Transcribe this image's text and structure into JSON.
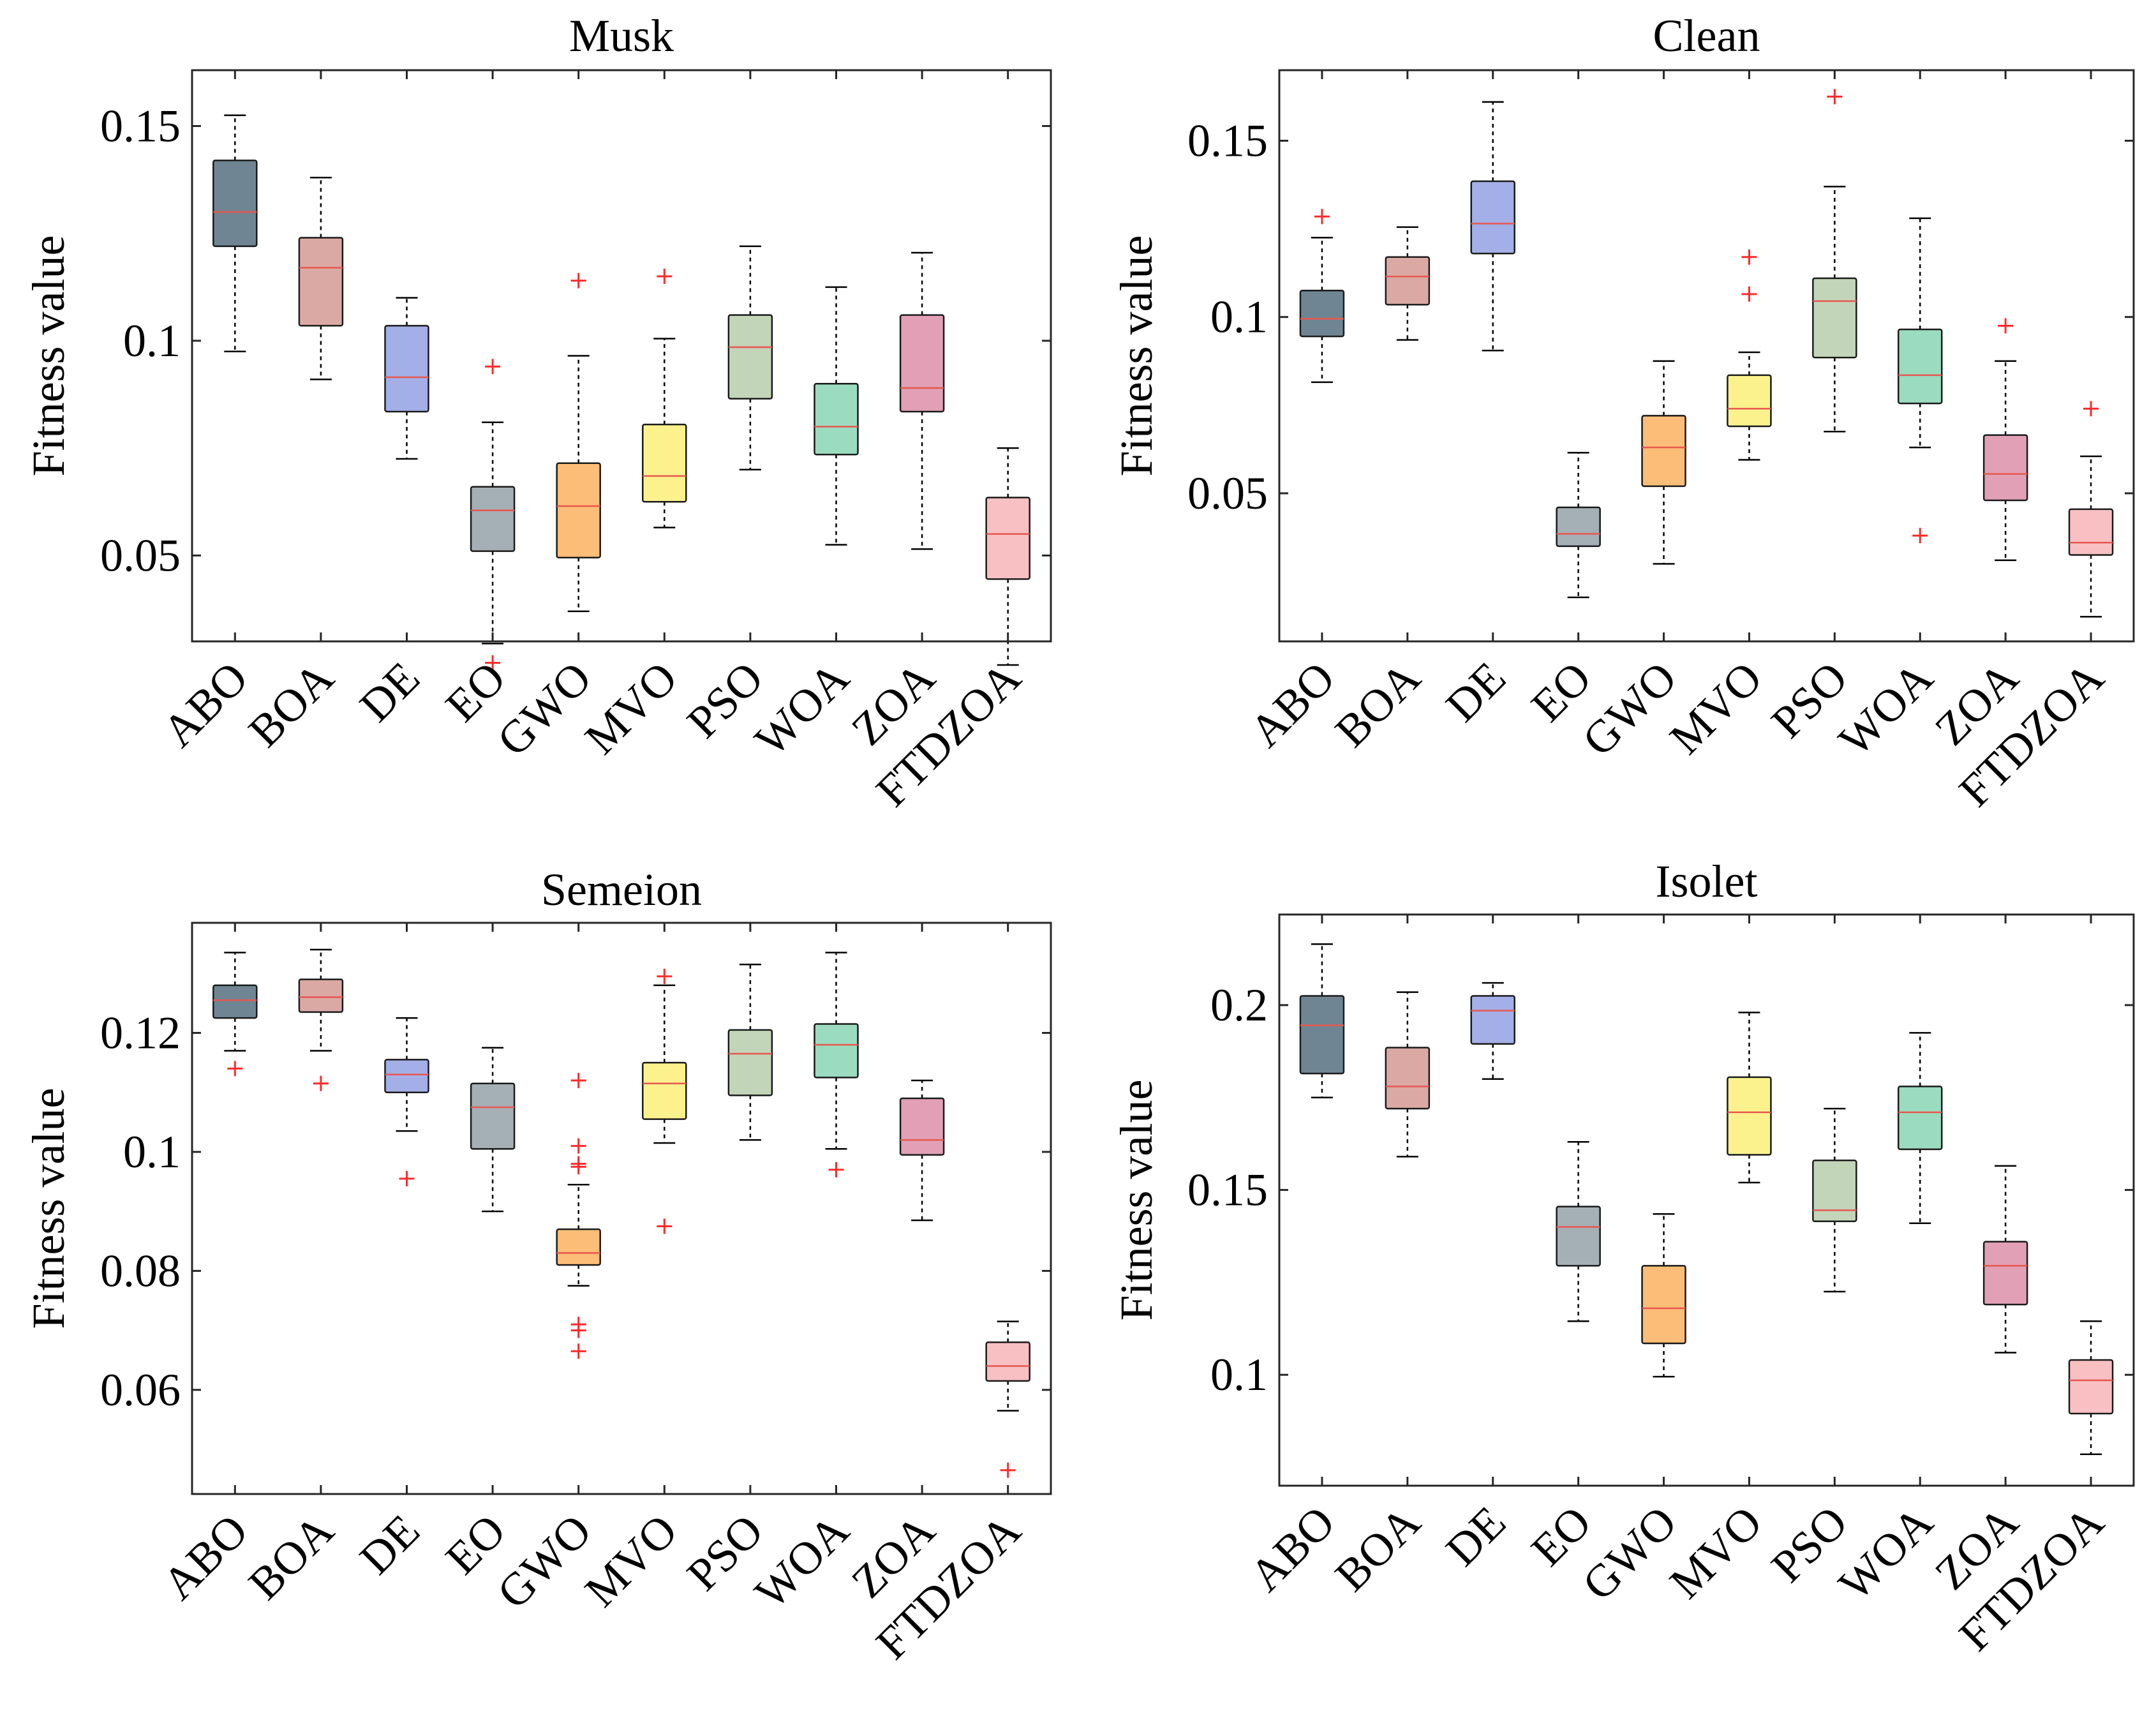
{
  "colors": {
    "ABO": "#6f8593",
    "BOA": "#dba9a3",
    "DE": "#a3afe6",
    "EO": "#a5afb6",
    "GWO": "#fbbd77",
    "MVO": "#fbf28d",
    "PSO": "#c3d5b9",
    "WOA": "#9bdbbf",
    "ZOA": "#e1a0b5",
    "FTDZOA": "#f8c0c3",
    "median": "#e8564f",
    "outlier": "#ff2a2a"
  },
  "chart_data": [
    {
      "type": "box",
      "title": "Musk",
      "ylabel": "Fitness value",
      "categories": [
        "ABO",
        "BOA",
        "DE",
        "EO",
        "GWO",
        "MVO",
        "PSO",
        "WOA",
        "ZOA",
        "FTDZOA"
      ],
      "ylim": [
        0.03,
        0.163
      ],
      "yticks": [
        0.05,
        0.1,
        0.15
      ],
      "ytick_labels": [
        "0.05",
        "0.1",
        "0.15"
      ],
      "boxes": [
        {
          "whisker_low": 0.0975,
          "q1": 0.122,
          "median": 0.13,
          "q3": 0.142,
          "whisker_high": 0.1525,
          "outliers": []
        },
        {
          "whisker_low": 0.091,
          "q1": 0.1035,
          "median": 0.117,
          "q3": 0.124,
          "whisker_high": 0.138,
          "outliers": []
        },
        {
          "whisker_low": 0.0725,
          "q1": 0.0835,
          "median": 0.0915,
          "q3": 0.1035,
          "whisker_high": 0.11,
          "outliers": []
        },
        {
          "whisker_low": 0.0295,
          "q1": 0.051,
          "median": 0.0605,
          "q3": 0.066,
          "whisker_high": 0.081,
          "outliers": [
            0.094,
            0.025
          ]
        },
        {
          "whisker_low": 0.037,
          "q1": 0.0495,
          "median": 0.0615,
          "q3": 0.0715,
          "whisker_high": 0.0965,
          "outliers": [
            0.114
          ]
        },
        {
          "whisker_low": 0.0565,
          "q1": 0.0625,
          "median": 0.0685,
          "q3": 0.0805,
          "whisker_high": 0.1005,
          "outliers": [
            0.115
          ]
        },
        {
          "whisker_low": 0.07,
          "q1": 0.0865,
          "median": 0.0985,
          "q3": 0.106,
          "whisker_high": 0.122,
          "outliers": []
        },
        {
          "whisker_low": 0.0525,
          "q1": 0.0735,
          "median": 0.08,
          "q3": 0.09,
          "whisker_high": 0.1125,
          "outliers": []
        },
        {
          "whisker_low": 0.0515,
          "q1": 0.0835,
          "median": 0.089,
          "q3": 0.106,
          "whisker_high": 0.1205,
          "outliers": []
        },
        {
          "whisker_low": 0.0245,
          "q1": 0.0445,
          "median": 0.055,
          "q3": 0.0635,
          "whisker_high": 0.075,
          "outliers": []
        }
      ]
    },
    {
      "type": "box",
      "title": "Clean",
      "ylabel": "Fitness value",
      "categories": [
        "ABO",
        "BOA",
        "DE",
        "EO",
        "GWO",
        "MVO",
        "PSO",
        "WOA",
        "ZOA",
        "FTDZOA"
      ],
      "ylim": [
        0.008,
        0.17
      ],
      "yticks": [
        0.05,
        0.1,
        0.15
      ],
      "ytick_labels": [
        "0.05",
        "0.1",
        "0.15"
      ],
      "boxes": [
        {
          "whisker_low": 0.0815,
          "q1": 0.0945,
          "median": 0.0995,
          "q3": 0.1075,
          "whisker_high": 0.1225,
          "outliers": [
            0.1285
          ]
        },
        {
          "whisker_low": 0.0935,
          "q1": 0.1035,
          "median": 0.1115,
          "q3": 0.117,
          "whisker_high": 0.1255,
          "outliers": []
        },
        {
          "whisker_low": 0.0905,
          "q1": 0.118,
          "median": 0.1265,
          "q3": 0.1385,
          "whisker_high": 0.161,
          "outliers": []
        },
        {
          "whisker_low": 0.0205,
          "q1": 0.035,
          "median": 0.0385,
          "q3": 0.046,
          "whisker_high": 0.0615,
          "outliers": []
        },
        {
          "whisker_low": 0.03,
          "q1": 0.052,
          "median": 0.063,
          "q3": 0.072,
          "whisker_high": 0.0875,
          "outliers": []
        },
        {
          "whisker_low": 0.0595,
          "q1": 0.069,
          "median": 0.074,
          "q3": 0.0835,
          "whisker_high": 0.09,
          "outliers": [
            0.117,
            0.1065
          ]
        },
        {
          "whisker_low": 0.0675,
          "q1": 0.0885,
          "median": 0.1045,
          "q3": 0.111,
          "whisker_high": 0.137,
          "outliers": [
            0.1625
          ]
        },
        {
          "whisker_low": 0.063,
          "q1": 0.0755,
          "median": 0.0835,
          "q3": 0.0965,
          "whisker_high": 0.128,
          "outliers": [
            0.038
          ]
        },
        {
          "whisker_low": 0.031,
          "q1": 0.048,
          "median": 0.0555,
          "q3": 0.0665,
          "whisker_high": 0.0875,
          "outliers": [
            0.0975
          ]
        },
        {
          "whisker_low": 0.015,
          "q1": 0.0325,
          "median": 0.036,
          "q3": 0.0455,
          "whisker_high": 0.0605,
          "outliers": [
            0.074
          ]
        }
      ]
    },
    {
      "type": "box",
      "title": "Semeion",
      "ylabel": "Fitness value",
      "categories": [
        "ABO",
        "BOA",
        "DE",
        "EO",
        "GWO",
        "MVO",
        "PSO",
        "WOA",
        "ZOA",
        "FTDZOA"
      ],
      "ylim": [
        0.0425,
        0.1385
      ],
      "yticks": [
        0.06,
        0.08,
        0.1,
        0.12
      ],
      "ytick_labels": [
        "0.06",
        "0.08",
        "0.1",
        "0.12"
      ],
      "boxes": [
        {
          "whisker_low": 0.117,
          "q1": 0.1225,
          "median": 0.1255,
          "q3": 0.128,
          "whisker_high": 0.1335,
          "outliers": [
            0.114
          ]
        },
        {
          "whisker_low": 0.117,
          "q1": 0.1235,
          "median": 0.126,
          "q3": 0.129,
          "whisker_high": 0.134,
          "outliers": [
            0.1115
          ]
        },
        {
          "whisker_low": 0.1035,
          "q1": 0.11,
          "median": 0.113,
          "q3": 0.1155,
          "whisker_high": 0.1225,
          "outliers": [
            0.0955
          ]
        },
        {
          "whisker_low": 0.09,
          "q1": 0.1005,
          "median": 0.1075,
          "q3": 0.1115,
          "whisker_high": 0.1175,
          "outliers": []
        },
        {
          "whisker_low": 0.0775,
          "q1": 0.081,
          "median": 0.083,
          "q3": 0.087,
          "whisker_high": 0.0945,
          "outliers": [
            0.112,
            0.101,
            0.098,
            0.0975,
            0.071,
            0.07,
            0.0665
          ]
        },
        {
          "whisker_low": 0.1015,
          "q1": 0.1055,
          "median": 0.1115,
          "q3": 0.115,
          "whisker_high": 0.128,
          "outliers": [
            0.1295,
            0.0875
          ]
        },
        {
          "whisker_low": 0.102,
          "q1": 0.1095,
          "median": 0.1165,
          "q3": 0.1205,
          "whisker_high": 0.1315,
          "outliers": []
        },
        {
          "whisker_low": 0.1005,
          "q1": 0.1125,
          "median": 0.118,
          "q3": 0.1215,
          "whisker_high": 0.1335,
          "outliers": [
            0.097
          ]
        },
        {
          "whisker_low": 0.0885,
          "q1": 0.0995,
          "median": 0.102,
          "q3": 0.109,
          "whisker_high": 0.112,
          "outliers": []
        },
        {
          "whisker_low": 0.0565,
          "q1": 0.0615,
          "median": 0.064,
          "q3": 0.068,
          "whisker_high": 0.0715,
          "outliers": [
            0.0465
          ]
        }
      ]
    },
    {
      "type": "box",
      "title": "Isolet",
      "ylabel": "Fitness value",
      "categories": [
        "ABO",
        "BOA",
        "DE",
        "EO",
        "GWO",
        "MVO",
        "PSO",
        "WOA",
        "ZOA",
        "FTDZOA"
      ],
      "ylim": [
        0.07,
        0.2245
      ],
      "yticks": [
        0.1,
        0.15,
        0.2
      ],
      "ytick_labels": [
        "0.1",
        "0.15",
        "0.2"
      ],
      "boxes": [
        {
          "whisker_low": 0.175,
          "q1": 0.1815,
          "median": 0.1945,
          "q3": 0.2025,
          "whisker_high": 0.2165,
          "outliers": []
        },
        {
          "whisker_low": 0.159,
          "q1": 0.172,
          "median": 0.178,
          "q3": 0.1885,
          "whisker_high": 0.2035,
          "outliers": []
        },
        {
          "whisker_low": 0.18,
          "q1": 0.1895,
          "median": 0.1985,
          "q3": 0.2025,
          "whisker_high": 0.206,
          "outliers": []
        },
        {
          "whisker_low": 0.1145,
          "q1": 0.1295,
          "median": 0.14,
          "q3": 0.1455,
          "whisker_high": 0.163,
          "outliers": []
        },
        {
          "whisker_low": 0.0995,
          "q1": 0.1085,
          "median": 0.118,
          "q3": 0.1295,
          "whisker_high": 0.1435,
          "outliers": []
        },
        {
          "whisker_low": 0.152,
          "q1": 0.1595,
          "median": 0.171,
          "q3": 0.1805,
          "whisker_high": 0.198,
          "outliers": []
        },
        {
          "whisker_low": 0.1225,
          "q1": 0.1415,
          "median": 0.1445,
          "q3": 0.158,
          "whisker_high": 0.172,
          "outliers": []
        },
        {
          "whisker_low": 0.141,
          "q1": 0.161,
          "median": 0.171,
          "q3": 0.178,
          "whisker_high": 0.1925,
          "outliers": []
        },
        {
          "whisker_low": 0.106,
          "q1": 0.119,
          "median": 0.1295,
          "q3": 0.136,
          "whisker_high": 0.1565,
          "outliers": []
        },
        {
          "whisker_low": 0.0785,
          "q1": 0.0895,
          "median": 0.0985,
          "q3": 0.104,
          "whisker_high": 0.1145,
          "outliers": []
        }
      ]
    }
  ]
}
